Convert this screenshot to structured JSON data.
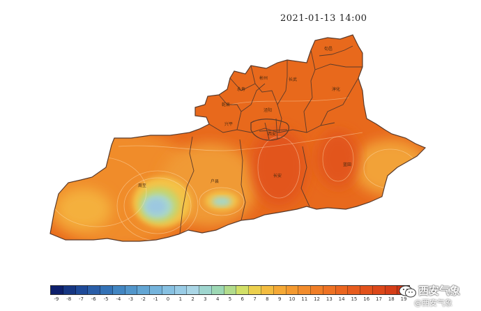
{
  "timestamp": "2021-01-13 14:00",
  "colors": {
    "base": "#e8691c",
    "east": "#ea6a1e",
    "west": "#f08c2c",
    "hot": "#e2541a",
    "lake_outer": "#f4c246",
    "lake_mid": "#c8d46a",
    "lake_inner": "#a9d7c9",
    "lake_core": "#9cc8e0",
    "border": "#5a3a2a"
  },
  "legend": {
    "ticks": [
      "-9",
      "-8",
      "-7",
      "-6",
      "-5",
      "-4",
      "-3",
      "-2",
      "-1",
      "0",
      "1",
      "2",
      "3",
      "4",
      "5",
      "6",
      "7",
      "8",
      "9",
      "10",
      "11",
      "12",
      "13",
      "14",
      "15",
      "16",
      "17",
      "18",
      "19"
    ],
    "swatches": [
      "#0d1f6b",
      "#163682",
      "#1f4a98",
      "#2a5ea8",
      "#3472b6",
      "#4286c2",
      "#5296cb",
      "#63a6d4",
      "#75b4dc",
      "#87c1e2",
      "#99cce6",
      "#aad6e6",
      "#9fd6cf",
      "#9dd8b4",
      "#b2dc8c",
      "#d2e068",
      "#ecd04e",
      "#f3bc40",
      "#f5a936",
      "#f49a30",
      "#f28c2c",
      "#f07e28",
      "#ee7224",
      "#eb6620",
      "#e75c1e",
      "#e2521c",
      "#dc481a",
      "#d53e18",
      "#cc3416"
    ]
  },
  "watermark": {
    "main": "西安气象",
    "sub": "@西安气象"
  }
}
